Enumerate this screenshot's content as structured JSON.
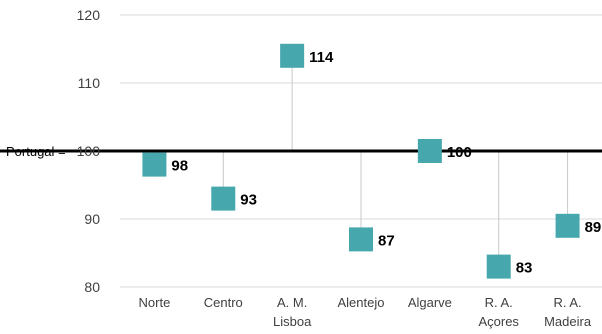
{
  "chart_data": {
    "type": "scatter",
    "categories": [
      [
        "Norte"
      ],
      [
        "Centro"
      ],
      [
        "A. M.",
        "Lisboa"
      ],
      [
        "Alentejo"
      ],
      [
        "Algarve"
      ],
      [
        "R. A.",
        "Açores"
      ],
      [
        "R. A.",
        "Madeira"
      ]
    ],
    "values": [
      98,
      93,
      114,
      87,
      100,
      83,
      89
    ],
    "value_labels": [
      "98",
      "93",
      "114",
      "87",
      "100",
      "83",
      "89"
    ],
    "ylim": [
      80,
      120
    ],
    "yticks": [
      80,
      90,
      100,
      110,
      120
    ],
    "baseline": {
      "label": "Portugal =",
      "value": 100
    },
    "grid": true,
    "colors": {
      "marker": "#46a8ad",
      "stem": "#c8c8c8",
      "grid": "#d9d9d9",
      "baseline": "#000000",
      "text": "#404040",
      "label": "#000000"
    }
  }
}
